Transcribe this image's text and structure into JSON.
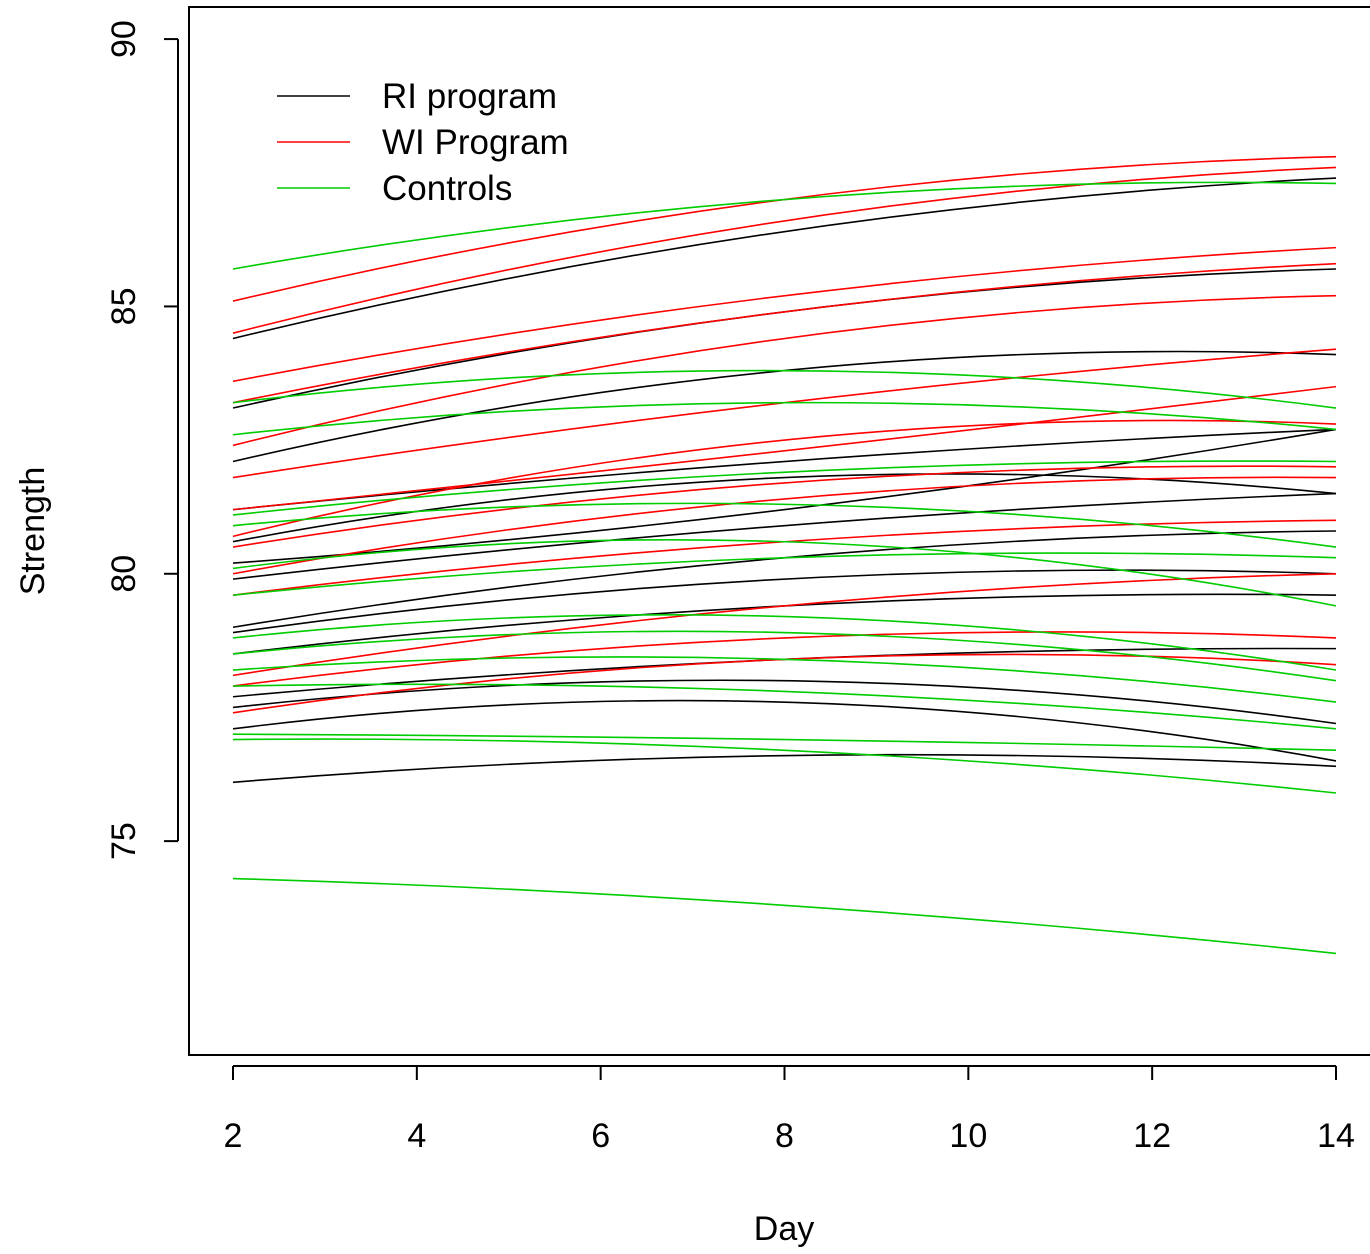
{
  "chart_data": {
    "type": "line",
    "title": "",
    "xlabel": "Day",
    "ylabel": "Strength",
    "xlim": [
      2,
      14
    ],
    "ylim": [
      71,
      90.6
    ],
    "x_ticks": [
      2,
      4,
      6,
      8,
      10,
      12,
      14
    ],
    "y_ticks": [
      75,
      80,
      85,
      90
    ],
    "grid": false,
    "legend_position": "top-left",
    "legend": [
      {
        "label": "RI program",
        "color": "#000000"
      },
      {
        "label": "WI Program",
        "color": "#ff0000"
      },
      {
        "label": "Controls",
        "color": "#00cc00"
      }
    ],
    "x_points": [
      2,
      8,
      14
    ],
    "series": [
      {
        "group": "RI program",
        "color": "#000000",
        "y": [
          84.4,
          86.4,
          87.4
        ]
      },
      {
        "group": "RI program",
        "color": "#000000",
        "y": [
          83.1,
          84.9,
          85.7
        ]
      },
      {
        "group": "RI program",
        "color": "#000000",
        "y": [
          82.1,
          83.8,
          84.1
        ]
      },
      {
        "group": "RI program",
        "color": "#000000",
        "y": [
          81.2,
          82.1,
          82.7
        ]
      },
      {
        "group": "RI program",
        "color": "#000000",
        "y": [
          80.6,
          81.8,
          81.5
        ]
      },
      {
        "group": "RI program",
        "color": "#000000",
        "y": [
          80.2,
          81.2,
          82.7
        ]
      },
      {
        "group": "RI program",
        "color": "#000000",
        "y": [
          79.9,
          80.9,
          81.5
        ]
      },
      {
        "group": "RI program",
        "color": "#000000",
        "y": [
          79.0,
          80.3,
          80.8
        ]
      },
      {
        "group": "RI program",
        "color": "#000000",
        "y": [
          78.9,
          79.9,
          80.0
        ]
      },
      {
        "group": "RI program",
        "color": "#000000",
        "y": [
          78.5,
          79.4,
          79.6
        ]
      },
      {
        "group": "RI program",
        "color": "#000000",
        "y": [
          77.7,
          78.4,
          78.6
        ]
      },
      {
        "group": "RI program",
        "color": "#000000",
        "y": [
          77.5,
          78.0,
          77.2
        ]
      },
      {
        "group": "RI program",
        "color": "#000000",
        "y": [
          77.1,
          77.6,
          76.5
        ]
      },
      {
        "group": "RI program",
        "color": "#000000",
        "y": [
          76.1,
          76.6,
          76.4
        ]
      },
      {
        "group": "WI Program",
        "color": "#ff0000",
        "y": [
          85.1,
          87.0,
          87.8
        ]
      },
      {
        "group": "WI Program",
        "color": "#ff0000",
        "y": [
          84.5,
          86.6,
          87.6
        ]
      },
      {
        "group": "WI Program",
        "color": "#ff0000",
        "y": [
          83.6,
          85.2,
          86.1
        ]
      },
      {
        "group": "WI Program",
        "color": "#ff0000",
        "y": [
          83.2,
          84.9,
          85.8
        ]
      },
      {
        "group": "WI Program",
        "color": "#ff0000",
        "y": [
          82.4,
          84.4,
          85.2
        ]
      },
      {
        "group": "WI Program",
        "color": "#ff0000",
        "y": [
          81.8,
          83.2,
          84.2
        ]
      },
      {
        "group": "WI Program",
        "color": "#ff0000",
        "y": [
          81.2,
          82.3,
          83.5
        ]
      },
      {
        "group": "WI Program",
        "color": "#ff0000",
        "y": [
          80.7,
          82.5,
          82.8
        ]
      },
      {
        "group": "WI Program",
        "color": "#ff0000",
        "y": [
          80.5,
          81.7,
          82.0
        ]
      },
      {
        "group": "WI Program",
        "color": "#ff0000",
        "y": [
          80.0,
          81.4,
          81.8
        ]
      },
      {
        "group": "WI Program",
        "color": "#ff0000",
        "y": [
          79.6,
          80.6,
          81.0
        ]
      },
      {
        "group": "WI Program",
        "color": "#ff0000",
        "y": [
          78.1,
          79.4,
          80.0
        ]
      },
      {
        "group": "WI Program",
        "color": "#ff0000",
        "y": [
          77.9,
          78.8,
          78.8
        ]
      },
      {
        "group": "WI Program",
        "color": "#ff0000",
        "y": [
          77.4,
          78.4,
          78.3
        ]
      },
      {
        "group": "Controls",
        "color": "#00cc00",
        "y": [
          85.7,
          87.0,
          87.3
        ]
      },
      {
        "group": "Controls",
        "color": "#00cc00",
        "y": [
          83.2,
          83.8,
          83.1
        ]
      },
      {
        "group": "Controls",
        "color": "#00cc00",
        "y": [
          82.6,
          83.2,
          82.7
        ]
      },
      {
        "group": "Controls",
        "color": "#00cc00",
        "y": [
          81.1,
          81.9,
          82.1
        ]
      },
      {
        "group": "Controls",
        "color": "#00cc00",
        "y": [
          80.9,
          81.3,
          80.5
        ]
      },
      {
        "group": "Controls",
        "color": "#00cc00",
        "y": [
          80.1,
          80.6,
          79.4
        ]
      },
      {
        "group": "Controls",
        "color": "#00cc00",
        "y": [
          79.6,
          80.3,
          80.3
        ]
      },
      {
        "group": "Controls",
        "color": "#00cc00",
        "y": [
          78.8,
          79.2,
          78.2
        ]
      },
      {
        "group": "Controls",
        "color": "#00cc00",
        "y": [
          78.5,
          78.9,
          78.0
        ]
      },
      {
        "group": "Controls",
        "color": "#00cc00",
        "y": [
          78.2,
          78.4,
          77.6
        ]
      },
      {
        "group": "Controls",
        "color": "#00cc00",
        "y": [
          77.9,
          77.8,
          77.1
        ]
      },
      {
        "group": "Controls",
        "color": "#00cc00",
        "y": [
          77.0,
          76.9,
          76.7
        ]
      },
      {
        "group": "Controls",
        "color": "#00cc00",
        "y": [
          76.9,
          76.7,
          75.9
        ]
      },
      {
        "group": "Controls",
        "color": "#00cc00",
        "y": [
          74.3,
          73.8,
          72.9
        ]
      }
    ]
  }
}
